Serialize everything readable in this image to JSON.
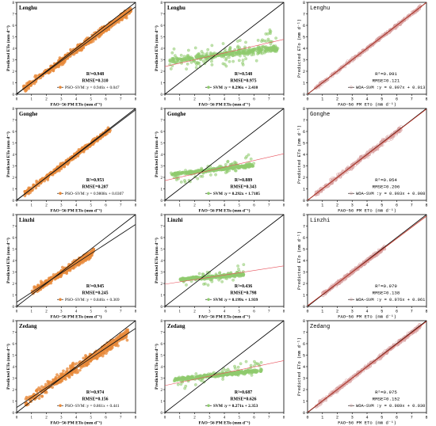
{
  "chart_data": [
    {
      "type": "scatter",
      "station": "Lenghu",
      "model": "PSO-SVM",
      "r2": "R²=0.948",
      "rmse": "RMSE=0.310",
      "equation": "PSO−SVM :y = 0.946x + 0.047",
      "xlabel": "FAO−56 PM ETo  (mm d⁻¹)",
      "ylabel": "Predicted ETo (mm d⁻¹)",
      "xlim": [
        0,
        8
      ],
      "ylim": [
        0,
        8
      ],
      "xticks": [
        0,
        1,
        2,
        3,
        4,
        5,
        6,
        7,
        8
      ],
      "yticks": [
        0,
        1,
        2,
        3,
        4,
        5,
        6,
        7,
        8
      ],
      "fit": {
        "slope": 0.946,
        "intercept": 0.047
      },
      "n_points": 500,
      "x_range": [
        0.4,
        7.7
      ],
      "spread": 0.28,
      "color": "#E8893A"
    },
    {
      "type": "scatter",
      "station": "Lenghu",
      "model": "SVM",
      "r2": "R²=0.548",
      "rmse": "RMSE=0.975",
      "equation": "SVM :y = 0.296x + 2.410",
      "xlabel": "FAO−56 PM ETo  (mm d⁻¹)",
      "ylabel": "Predicted ETo (mm d⁻¹)",
      "xlim": [
        0,
        8
      ],
      "ylim": [
        0,
        8
      ],
      "xticks": [
        0,
        1,
        2,
        3,
        4,
        5,
        6,
        7,
        8
      ],
      "yticks": [
        0,
        1,
        2,
        3,
        4,
        5,
        6,
        7,
        8
      ],
      "fit": {
        "slope": 0.296,
        "intercept": 2.41
      },
      "n_points": 450,
      "x_range": [
        0.3,
        7.6
      ],
      "spread": 0.75,
      "color": "#8FCB6E"
    },
    {
      "type": "scatter",
      "station": "Lenghu",
      "model": "WOA-SVM",
      "r2": "R²=0.991",
      "rmse": "RMSE=0.121",
      "equation": "WOA−SVM :y = 0.997x + 0.013",
      "xlabel": "FAO−56 PM ETo  (mm d⁻¹)",
      "ylabel": "Predicted ETo (mm d⁻¹)",
      "xlim": [
        0,
        8
      ],
      "ylim": [
        0,
        8
      ],
      "xticks": [
        0,
        1,
        2,
        3,
        4,
        5,
        6,
        7,
        8
      ],
      "yticks": [
        0,
        1,
        2,
        3,
        4,
        5,
        6,
        7,
        8
      ],
      "fit": {
        "slope": 0.997,
        "intercept": 0.013
      },
      "n_points": 420,
      "x_range": [
        0.5,
        7.6
      ],
      "spread": 0.12,
      "color": "#D9A0A0"
    },
    {
      "type": "scatter",
      "station": "Gonghe",
      "model": "PSO-SVM",
      "r2": "R²=0.953",
      "rmse": "RMSE=0.207",
      "equation": "PSO−SVM :y = 0.9808x + 0.0307",
      "xlabel": "FAO−56 PM ETo  (mm d⁻¹)",
      "ylabel": "Predicted ETo (mm d⁻¹)",
      "xlim": [
        0,
        8
      ],
      "ylim": [
        0,
        8
      ],
      "xticks": [
        0,
        1,
        2,
        3,
        4,
        5,
        6,
        7,
        8
      ],
      "yticks": [
        0,
        1,
        2,
        3,
        4,
        5,
        6,
        7,
        8
      ],
      "fit": {
        "slope": 0.9808,
        "intercept": 0.0307
      },
      "n_points": 380,
      "x_range": [
        0.5,
        6.3
      ],
      "spread": 0.2,
      "color": "#E8893A"
    },
    {
      "type": "scatter",
      "station": "Gonghe",
      "model": "SVM",
      "r2": "R²=0.889",
      "rmse": "RMSE=0.343",
      "equation": "SVM :y = 0.292x + 1.7185",
      "xlabel": "FAO−56 PM ETo  (mm d⁻¹)",
      "ylabel": "Predicted ETo (mm d⁻¹)",
      "xlim": [
        0,
        8
      ],
      "ylim": [
        0,
        8
      ],
      "xticks": [
        0,
        1,
        2,
        3,
        4,
        5,
        6,
        7,
        8
      ],
      "yticks": [
        0,
        1,
        2,
        3,
        4,
        5,
        6,
        7,
        8
      ],
      "fit": {
        "slope": 0.292,
        "intercept": 1.7185
      },
      "n_points": 380,
      "x_range": [
        0.4,
        6.0
      ],
      "spread": 0.35,
      "color": "#8FCB6E"
    },
    {
      "type": "scatter",
      "station": "Gonghe",
      "model": "WOA-SVM",
      "r2": "R²=0.954",
      "rmse": "RMSE=0.206",
      "equation": "WOA−SVM :y = 0.993x + 0.008",
      "xlabel": "FAO−56 PM ETo  (mm d⁻¹)",
      "ylabel": "Predicted ETo (mm d⁻¹)",
      "xlim": [
        0,
        8
      ],
      "ylim": [
        0,
        8
      ],
      "xticks": [
        0,
        1,
        2,
        3,
        4,
        5,
        6,
        7,
        8
      ],
      "yticks": [
        0,
        1,
        2,
        3,
        4,
        5,
        6,
        7,
        8
      ],
      "fit": {
        "slope": 0.993,
        "intercept": 0.008
      },
      "n_points": 380,
      "x_range": [
        0.5,
        6.3
      ],
      "spread": 0.2,
      "color": "#D9A0A0"
    },
    {
      "type": "scatter",
      "station": "Linzhi",
      "model": "PSO-SVM",
      "r2": "R²=0.945",
      "rmse": "RMSE=0.245",
      "equation": "PSO−SVM :y = 0.846x + 0.369",
      "xlabel": "FAO−56 PM ETo  (mm d⁻¹)",
      "ylabel": "Predicted ETo (mm d⁻¹)",
      "xlim": [
        0,
        8
      ],
      "ylim": [
        0,
        8
      ],
      "xticks": [
        0,
        1,
        2,
        3,
        4,
        5,
        6,
        7,
        8
      ],
      "yticks": [
        0,
        1,
        2,
        3,
        4,
        5,
        6,
        7,
        8
      ],
      "fit": {
        "slope": 0.846,
        "intercept": 0.369
      },
      "n_points": 380,
      "x_range": [
        1.0,
        5.2
      ],
      "spread": 0.28,
      "color": "#E8893A"
    },
    {
      "type": "scatter",
      "station": "Linzhi",
      "model": "SVM",
      "r2": "R²=0.436",
      "rmse": "RMSE=0.798",
      "equation": "SVM :y = 0.199x + 1.939",
      "xlabel": "FAO−56 PM ETo  (mm d⁻¹)",
      "ylabel": "Predicted ETo (mm d⁻¹)",
      "xlim": [
        0,
        8
      ],
      "ylim": [
        0,
        8
      ],
      "xticks": [
        0,
        1,
        2,
        3,
        4,
        5,
        6,
        7,
        8
      ],
      "yticks": [
        0,
        1,
        2,
        3,
        4,
        5,
        6,
        7,
        8
      ],
      "fit": {
        "slope": 0.199,
        "intercept": 1.939
      },
      "n_points": 380,
      "x_range": [
        1.0,
        5.3
      ],
      "spread": 0.3,
      "color": "#8FCB6E"
    },
    {
      "type": "scatter",
      "station": "Linzhi",
      "model": "WOA-SVM",
      "r2": "R²=0.979",
      "rmse": "RMSE=0.138",
      "equation": "WOA−SVM :y = 0.976x + 0.061",
      "xlabel": "FAO−56 PM ETo  (mm d⁻¹)",
      "ylabel": "Predicted ETo (mm d⁻¹)",
      "xlim": [
        0,
        8
      ],
      "ylim": [
        0,
        8
      ],
      "xticks": [
        0,
        1,
        2,
        3,
        4,
        5,
        6,
        7,
        8
      ],
      "yticks": [
        0,
        1,
        2,
        3,
        4,
        5,
        6,
        7,
        8
      ],
      "fit": {
        "slope": 0.976,
        "intercept": 0.061
      },
      "n_points": 380,
      "x_range": [
        1.0,
        5.2
      ],
      "spread": 0.14,
      "color": "#D9A0A0"
    },
    {
      "type": "scatter",
      "station": "Zedang",
      "model": "PSO-SVM",
      "r2": "R²=0.974",
      "rmse": "RMSE=0.156",
      "equation": "PSO−SVM :y = 0.861x + 0.441",
      "xlabel": "FAO−56 PM ETo  (mm d⁻¹)",
      "ylabel": "Predicted ETo (mm d⁻¹)",
      "xlim": [
        0,
        8
      ],
      "ylim": [
        0,
        8
      ],
      "xticks": [
        0,
        1,
        2,
        3,
        4,
        5,
        6,
        7,
        8
      ],
      "yticks": [
        0,
        1,
        2,
        3,
        4,
        5,
        6,
        7,
        8
      ],
      "fit": {
        "slope": 0.861,
        "intercept": 0.441
      },
      "n_points": 480,
      "x_range": [
        0.6,
        7.5
      ],
      "spread": 0.4,
      "color": "#E8893A"
    },
    {
      "type": "scatter",
      "station": "Zedang",
      "model": "SVM",
      "r2": "R²=0.687",
      "rmse": "RMSE=0.626",
      "equation": "SVM :y = 0.271x + 2.353",
      "xlabel": "FAO−56 PM ETo  (mm d⁻¹)",
      "ylabel": "Predicted ETo (mm d⁻¹)",
      "xlim": [
        0,
        8
      ],
      "ylim": [
        0,
        8
      ],
      "xticks": [
        0,
        1,
        2,
        3,
        4,
        5,
        6,
        7,
        8
      ],
      "yticks": [
        0,
        1,
        2,
        3,
        4,
        5,
        6,
        7,
        8
      ],
      "fit": {
        "slope": 0.271,
        "intercept": 2.353
      },
      "n_points": 450,
      "x_range": [
        0.6,
        6.5
      ],
      "spread": 0.35,
      "color": "#8FCB6E"
    },
    {
      "type": "scatter",
      "station": "Zedang",
      "model": "WOA-SVM",
      "r2": "R²=0.975",
      "rmse": "RMSE=0.152",
      "equation": "WOA−SVM :y = 0.989x + 0.030",
      "xlabel": "FAO−56 PM ETo  (mm d⁻¹)",
      "ylabel": "Predicted ETo (mm d⁻¹)",
      "xlim": [
        0,
        8
      ],
      "ylim": [
        0,
        8
      ],
      "xticks": [
        0,
        1,
        2,
        3,
        4,
        5,
        6,
        7,
        8
      ],
      "yticks": [
        0,
        1,
        2,
        3,
        4,
        5,
        6,
        7,
        8
      ],
      "fit": {
        "slope": 0.989,
        "intercept": 0.03
      },
      "n_points": 450,
      "x_range": [
        0.5,
        7.6
      ],
      "spread": 0.16,
      "color": "#D9A0A0"
    }
  ]
}
